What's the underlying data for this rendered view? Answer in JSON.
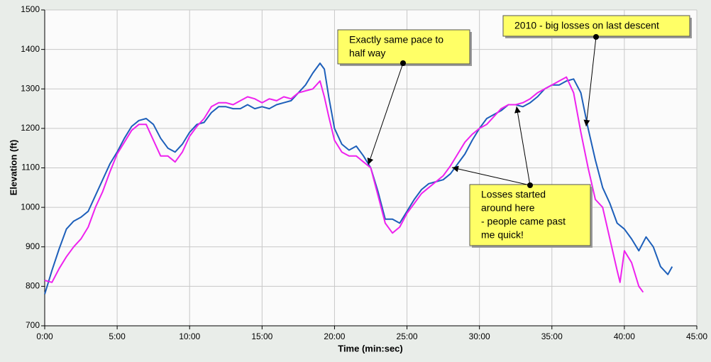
{
  "chart_data": {
    "type": "line",
    "xlabel": "Time (min:sec)",
    "ylabel": "Elevation (ft)",
    "xlim": [
      0,
      45
    ],
    "ylim": [
      700,
      1500
    ],
    "xticks": [
      {
        "value": 0,
        "label": "0:00"
      },
      {
        "value": 5,
        "label": "5:00"
      },
      {
        "value": 10,
        "label": "10:00"
      },
      {
        "value": 15,
        "label": "15:00"
      },
      {
        "value": 20,
        "label": "20:00"
      },
      {
        "value": 25,
        "label": "25:00"
      },
      {
        "value": 30,
        "label": "30:00"
      },
      {
        "value": 35,
        "label": "35:00"
      },
      {
        "value": 40,
        "label": "40:00"
      },
      {
        "value": 45,
        "label": "45:00"
      }
    ],
    "yticks": [
      700,
      800,
      900,
      1000,
      1100,
      1200,
      1300,
      1400,
      1500
    ],
    "grid": true,
    "series": [
      {
        "color": "#1d5fba",
        "x": [
          0,
          0.5,
          1,
          1.5,
          2,
          2.5,
          3,
          3.5,
          4,
          4.5,
          5,
          5.5,
          6,
          6.5,
          7,
          7.5,
          8,
          8.5,
          9,
          9.5,
          10,
          10.5,
          11,
          11.5,
          12,
          12.5,
          13,
          13.5,
          14,
          14.5,
          15,
          15.5,
          16,
          16.5,
          17,
          17.5,
          18,
          18.5,
          19,
          19.3,
          19.6,
          20,
          20.5,
          21,
          21.5,
          22,
          22.5,
          23,
          23.5,
          24,
          24.5,
          25,
          25.5,
          26,
          26.5,
          27,
          27.5,
          28,
          28.5,
          29,
          29.5,
          30,
          30.5,
          31,
          31.5,
          32,
          32.5,
          33,
          33.5,
          34,
          34.5,
          35,
          35.5,
          36,
          36.5,
          37,
          37.5,
          38,
          38.5,
          39,
          39.5,
          40,
          40.5,
          41,
          41.5,
          42,
          42.5,
          43,
          43.3
        ],
        "values": [
          780,
          840,
          895,
          945,
          965,
          975,
          990,
          1030,
          1070,
          1110,
          1140,
          1175,
          1205,
          1220,
          1225,
          1210,
          1175,
          1150,
          1140,
          1160,
          1190,
          1210,
          1215,
          1240,
          1255,
          1255,
          1250,
          1250,
          1260,
          1250,
          1255,
          1250,
          1260,
          1265,
          1270,
          1290,
          1310,
          1340,
          1365,
          1350,
          1280,
          1200,
          1160,
          1145,
          1155,
          1130,
          1100,
          1040,
          970,
          970,
          960,
          990,
          1020,
          1045,
          1060,
          1065,
          1070,
          1085,
          1110,
          1135,
          1170,
          1200,
          1225,
          1235,
          1245,
          1260,
          1260,
          1255,
          1265,
          1280,
          1300,
          1310,
          1310,
          1320,
          1325,
          1290,
          1200,
          1120,
          1050,
          1010,
          960,
          945,
          920,
          890,
          925,
          900,
          850,
          830,
          850
        ]
      },
      {
        "color": "#ee22ee",
        "x": [
          0,
          0.5,
          1,
          1.5,
          2,
          2.5,
          3,
          3.5,
          4,
          4.5,
          5,
          5.5,
          6,
          6.5,
          7,
          7.5,
          8,
          8.5,
          9,
          9.5,
          10,
          10.5,
          11,
          11.5,
          12,
          12.5,
          13,
          13.5,
          14,
          14.5,
          15,
          15.5,
          16,
          16.5,
          17,
          17.5,
          18,
          18.5,
          19,
          19.3,
          19.6,
          20,
          20.5,
          21,
          21.5,
          22,
          22.5,
          23,
          23.5,
          24,
          24.5,
          25,
          25.5,
          26,
          26.5,
          27,
          27.5,
          28,
          28.5,
          29,
          29.5,
          30,
          30.5,
          31,
          31.5,
          32,
          32.5,
          33,
          33.5,
          34,
          34.5,
          35,
          35.5,
          36,
          36.5,
          37,
          37.5,
          38,
          38.5,
          39,
          39.5,
          39.7,
          40,
          40.5,
          41,
          41.3
        ],
        "values": [
          815,
          810,
          845,
          875,
          900,
          920,
          950,
          1000,
          1040,
          1090,
          1135,
          1165,
          1195,
          1210,
          1210,
          1170,
          1130,
          1130,
          1115,
          1140,
          1180,
          1205,
          1225,
          1255,
          1265,
          1265,
          1260,
          1270,
          1280,
          1275,
          1265,
          1275,
          1270,
          1280,
          1275,
          1290,
          1295,
          1300,
          1320,
          1280,
          1230,
          1170,
          1140,
          1130,
          1130,
          1115,
          1100,
          1030,
          960,
          935,
          950,
          985,
          1010,
          1035,
          1050,
          1065,
          1080,
          1105,
          1135,
          1165,
          1185,
          1200,
          1210,
          1230,
          1250,
          1260,
          1260,
          1265,
          1275,
          1290,
          1300,
          1310,
          1320,
          1330,
          1290,
          1190,
          1100,
          1020,
          1000,
          920,
          840,
          810,
          890,
          860,
          800,
          785
        ]
      }
    ],
    "annotations": [
      {
        "lines": [
          "Exactly same pace to",
          "half way"
        ]
      },
      {
        "lines": [
          "2010 - big losses on last descent"
        ]
      },
      {
        "lines": [
          "Losses started",
          "around here",
          "- people came past",
          "me quick!"
        ]
      }
    ]
  }
}
